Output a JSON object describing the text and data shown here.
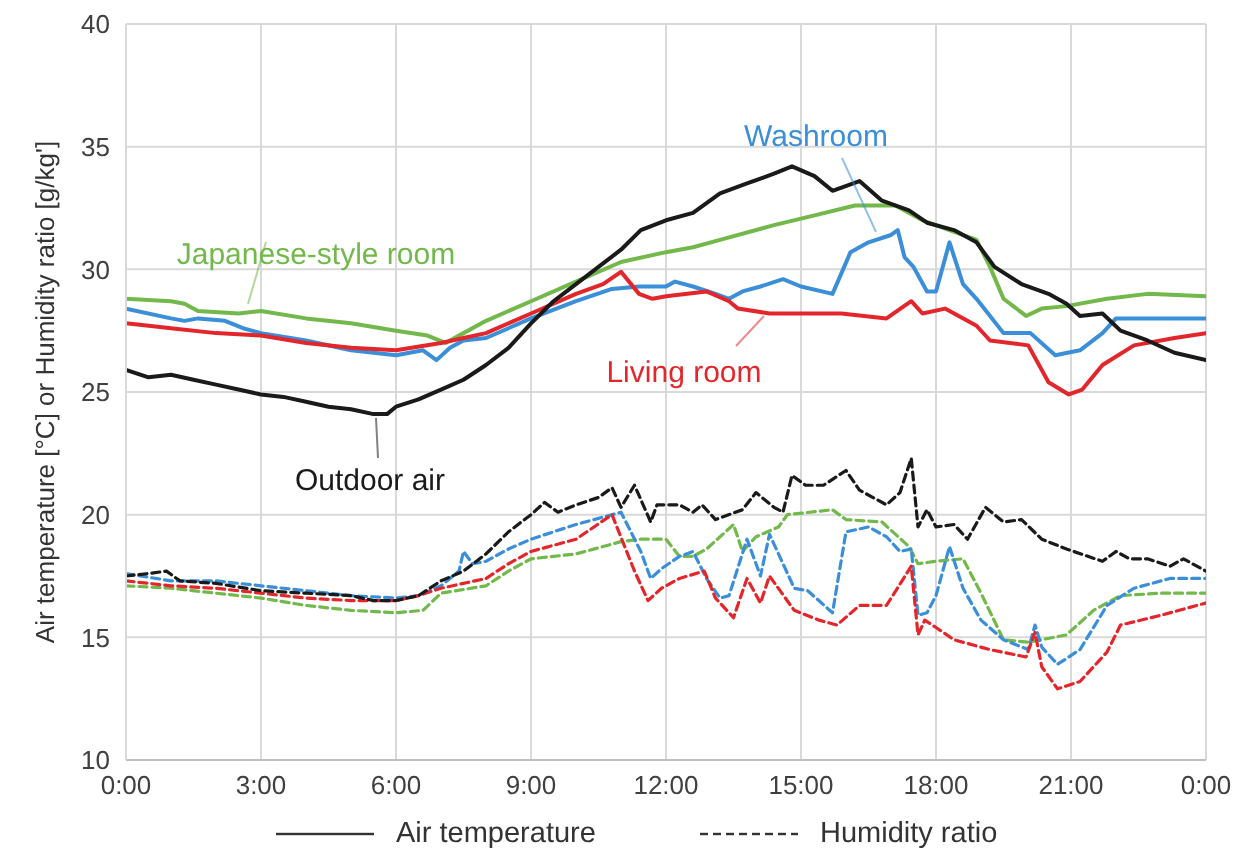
{
  "chart_data": {
    "type": "line",
    "ylabel": "Air temperature [°C] or Humidity ratio [g/kg']",
    "xlim": [
      0,
      24
    ],
    "xticks": [
      {
        "value": 0,
        "label": "0:00"
      },
      {
        "value": 3,
        "label": "3:00"
      },
      {
        "value": 6,
        "label": "6:00"
      },
      {
        "value": 9,
        "label": "9:00"
      },
      {
        "value": 12,
        "label": "12:00"
      },
      {
        "value": 15,
        "label": "15:00"
      },
      {
        "value": 18,
        "label": "18:00"
      },
      {
        "value": 21,
        "label": "21:00"
      },
      {
        "value": 24,
        "label": "0:00"
      }
    ],
    "ylim": [
      10,
      40
    ],
    "yticks": [
      10,
      15,
      20,
      25,
      30,
      35,
      40
    ],
    "grid": true,
    "line_style": "solid",
    "legend": "bottom",
    "annotations": [
      "Air temperature",
      "Humidity ratio"
    ],
    "series": [
      {
        "name": "Japanese-style room",
        "color": "#72b84b",
        "x": [
          0,
          1,
          1.3,
          1.6,
          2.5,
          3,
          4,
          5,
          6,
          6.7,
          7.1,
          7.5,
          8,
          9,
          10,
          11,
          12,
          12.6,
          13.2,
          14.4,
          15.3,
          16.2,
          17.1,
          17.7,
          18.3,
          18.9,
          19.2,
          19.5,
          20,
          20.35,
          20.9,
          21.8,
          22.7,
          24
        ],
        "values": [
          28.8,
          28.7,
          28.6,
          28.3,
          28.2,
          28.3,
          28.0,
          27.8,
          27.5,
          27.3,
          27.0,
          27.4,
          27.9,
          28.7,
          29.5,
          30.3,
          30.7,
          30.9,
          31.2,
          31.8,
          32.2,
          32.6,
          32.6,
          32.0,
          31.6,
          31.2,
          30.1,
          28.8,
          28.1,
          28.4,
          28.5,
          28.8,
          29.0,
          28.9
        ]
      },
      {
        "name": "Washroom",
        "color": "#3b8ed8",
        "x": [
          0,
          1,
          1.3,
          1.6,
          2.2,
          2.6,
          3,
          4,
          5,
          6,
          6.6,
          6.9,
          7.2,
          7.5,
          8,
          9,
          10,
          10.8,
          11.4,
          12,
          12.2,
          12.6,
          13.1,
          13.4,
          13.7,
          14.1,
          14.6,
          15,
          15.7,
          16.1,
          16.5,
          17,
          17.15,
          17.3,
          17.5,
          17.8,
          18,
          18.3,
          18.6,
          18.9,
          19.5,
          20.1,
          20.65,
          21.2,
          21.7,
          22,
          22.7,
          24
        ],
        "values": [
          28.4,
          28.0,
          27.9,
          28.0,
          27.9,
          27.6,
          27.4,
          27.1,
          26.7,
          26.5,
          26.7,
          26.3,
          26.8,
          27.1,
          27.2,
          28.0,
          28.7,
          29.2,
          29.3,
          29.3,
          29.5,
          29.3,
          29.0,
          28.8,
          29.1,
          29.3,
          29.6,
          29.3,
          29.0,
          30.7,
          31.1,
          31.4,
          31.6,
          30.5,
          30.1,
          29.1,
          29.1,
          31.1,
          29.4,
          28.8,
          27.4,
          27.4,
          26.5,
          26.7,
          27.4,
          28.0,
          28.0,
          28.0
        ]
      },
      {
        "name": "Living room",
        "color": "#e3262b",
        "x": [
          0,
          1,
          2,
          3,
          4,
          5,
          6,
          7,
          7.5,
          8,
          9,
          10,
          10.6,
          11,
          11.4,
          11.7,
          12,
          12.9,
          13.4,
          13.6,
          14.3,
          15,
          15.9,
          16.9,
          17.45,
          17.7,
          18.2,
          18.9,
          19.2,
          20.05,
          20.5,
          20.95,
          21.25,
          21.7,
          22.4,
          23.3,
          24
        ],
        "values": [
          27.8,
          27.6,
          27.4,
          27.3,
          27.0,
          26.8,
          26.7,
          27.0,
          27.2,
          27.4,
          28.2,
          29.0,
          29.4,
          29.9,
          29.0,
          28.8,
          28.9,
          29.1,
          28.7,
          28.4,
          28.2,
          28.2,
          28.2,
          28.0,
          28.7,
          28.2,
          28.4,
          27.7,
          27.1,
          26.9,
          25.4,
          24.9,
          25.1,
          26.1,
          26.9,
          27.2,
          27.4
        ]
      },
      {
        "name": "Outdoor air",
        "color": "#1a1a1a",
        "x": [
          0,
          0.5,
          1,
          1.5,
          2,
          2.5,
          3,
          3.5,
          4,
          4.5,
          5,
          5.5,
          5.8,
          6,
          6.5,
          7,
          7.5,
          8,
          8.5,
          9,
          9.5,
          10,
          10.5,
          11,
          11.44,
          12,
          12.6,
          13.2,
          13.8,
          14.4,
          14.8,
          15.3,
          15.7,
          16.3,
          16.8,
          17.4,
          17.8,
          18.4,
          18.9,
          19.3,
          19.9,
          20.5,
          20.9,
          21.2,
          21.7,
          22.1,
          22.7,
          23.3,
          24
        ],
        "values": [
          25.9,
          25.6,
          25.7,
          25.5,
          25.3,
          25.1,
          24.9,
          24.8,
          24.6,
          24.4,
          24.3,
          24.1,
          24.1,
          24.4,
          24.7,
          25.1,
          25.5,
          26.1,
          26.8,
          27.8,
          28.7,
          29.4,
          30.1,
          30.8,
          31.6,
          32.0,
          32.3,
          33.1,
          33.5,
          33.9,
          34.2,
          33.8,
          33.2,
          33.6,
          32.8,
          32.4,
          31.9,
          31.6,
          31.1,
          30.1,
          29.4,
          29.0,
          28.6,
          28.1,
          28.2,
          27.5,
          27.1,
          26.6,
          26.3
        ]
      },
      {
        "color": "#72b84b",
        "line_style": "dashed",
        "x": [
          0,
          1,
          2,
          3,
          4,
          5,
          6,
          6.6,
          7,
          8,
          8.5,
          9,
          10,
          11,
          11.44,
          12,
          12.3,
          12.6,
          12.9,
          13.5,
          13.7,
          14,
          14.5,
          14.7,
          15.7,
          16,
          16.8,
          17.4,
          17.6,
          18,
          18.6,
          19,
          19.5,
          20.05,
          20.9,
          21.5,
          22.1,
          23,
          24
        ],
        "values": [
          17.1,
          17.0,
          16.8,
          16.6,
          16.3,
          16.1,
          16.0,
          16.1,
          16.8,
          17.1,
          17.7,
          18.2,
          18.4,
          18.9,
          19.0,
          19.0,
          18.3,
          18.3,
          18.6,
          19.6,
          18.5,
          19.1,
          19.5,
          20.0,
          20.2,
          19.8,
          19.7,
          18.7,
          18.0,
          18.1,
          18.2,
          16.8,
          14.9,
          14.8,
          15.1,
          16.1,
          16.7,
          16.8,
          16.8
        ]
      },
      {
        "color": "#3b8ed8",
        "line_style": "dashed",
        "x": [
          0,
          1,
          2,
          3,
          4,
          5,
          6,
          6.5,
          7,
          7.4,
          7.5,
          7.7,
          8,
          8.5,
          9,
          10,
          11,
          11.44,
          11.66,
          11.9,
          12.3,
          12.6,
          12.9,
          13.2,
          13.4,
          13.8,
          14.1,
          14.3,
          14.85,
          15.15,
          15.7,
          16,
          16.5,
          16.9,
          17.2,
          17.45,
          17.6,
          17.8,
          18,
          18.3,
          18.6,
          19,
          19.5,
          20.05,
          20.2,
          20.35,
          20.7,
          21.2,
          21.8,
          22.4,
          23.2,
          24
        ],
        "values": [
          17.6,
          17.3,
          17.3,
          17.1,
          16.9,
          16.7,
          16.6,
          16.7,
          17.1,
          17.7,
          18.5,
          18.0,
          18.1,
          18.6,
          19.0,
          19.6,
          20.1,
          18.5,
          17.4,
          17.8,
          18.3,
          18.5,
          17.4,
          16.6,
          16.7,
          19.0,
          17.5,
          19.2,
          17.0,
          16.9,
          16.0,
          19.3,
          19.5,
          19.1,
          18.5,
          18.6,
          15.9,
          16.0,
          16.7,
          18.7,
          17.0,
          15.7,
          14.9,
          14.5,
          15.5,
          14.6,
          13.9,
          14.5,
          16.3,
          17.0,
          17.4,
          17.4
        ]
      },
      {
        "color": "#e3262b",
        "line_style": "dashed",
        "x": [
          0,
          1,
          2,
          3,
          4,
          5,
          6,
          6.5,
          7,
          8,
          8.5,
          9,
          10,
          10.8,
          11.3,
          11.6,
          11.9,
          12.3,
          12.85,
          13.1,
          13.5,
          13.8,
          14.1,
          14.3,
          14.85,
          15.4,
          15.8,
          16.3,
          16.9,
          17.45,
          17.6,
          17.75,
          18,
          18.4,
          19.2,
          20,
          20.2,
          20.35,
          20.7,
          21.2,
          21.8,
          22.1,
          23,
          24
        ],
        "values": [
          17.3,
          17.1,
          17.0,
          16.8,
          16.6,
          16.5,
          16.5,
          16.7,
          17.0,
          17.4,
          18.0,
          18.5,
          19.0,
          20.0,
          17.7,
          16.5,
          17.0,
          17.4,
          17.7,
          16.6,
          15.8,
          17.4,
          16.4,
          17.5,
          16.1,
          15.7,
          15.5,
          16.3,
          16.3,
          17.9,
          15.1,
          15.7,
          15.4,
          14.9,
          14.5,
          14.2,
          15.2,
          13.8,
          12.9,
          13.2,
          14.4,
          15.5,
          15.9,
          16.4
        ]
      },
      {
        "color": "#1a1a1a",
        "line_style": "dashed",
        "x": [
          0,
          0.5,
          0.9,
          1.2,
          2,
          3,
          4,
          5,
          5.5,
          6,
          6.5,
          7,
          7.5,
          8,
          8.5,
          9,
          9.3,
          9.6,
          10,
          10.5,
          10.8,
          11,
          11.3,
          11.66,
          11.8,
          12.3,
          12.6,
          12.8,
          13.1,
          13.7,
          14,
          14.4,
          14.6,
          14.8,
          15.1,
          15.5,
          16,
          16.3,
          16.9,
          17.2,
          17.45,
          17.6,
          17.8,
          18,
          18.4,
          18.7,
          19.1,
          19.5,
          19.9,
          20.35,
          20.9,
          21.7,
          22,
          22.3,
          22.7,
          23.2,
          23.5,
          24
        ],
        "values": [
          17.5,
          17.6,
          17.7,
          17.3,
          17.2,
          16.9,
          16.8,
          16.7,
          16.5,
          16.5,
          16.7,
          17.3,
          17.7,
          18.4,
          19.3,
          20.0,
          20.5,
          20.1,
          20.4,
          20.7,
          21.1,
          20.3,
          21.2,
          19.7,
          20.4,
          20.4,
          20.1,
          20.4,
          19.8,
          20.2,
          20.9,
          20.3,
          20.1,
          21.6,
          21.2,
          21.2,
          21.8,
          21.0,
          20.4,
          20.9,
          22.3,
          19.5,
          20.2,
          19.5,
          19.6,
          19.0,
          20.3,
          19.7,
          19.8,
          19.0,
          18.6,
          18.1,
          18.5,
          18.2,
          18.2,
          17.9,
          18.2,
          17.7
        ]
      }
    ]
  }
}
